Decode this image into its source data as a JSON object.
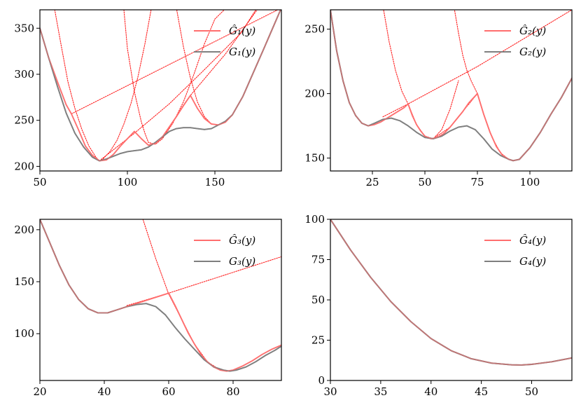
{
  "chart_data": [
    {
      "type": "line",
      "panel": "top-left",
      "xlim": [
        50,
        188
      ],
      "ylim": [
        195,
        370
      ],
      "xticks": [
        50,
        100,
        150
      ],
      "yticks": [
        200,
        250,
        300,
        350
      ],
      "legend": {
        "placement": "top-right",
        "entries": [
          "Ĝ₁(y)",
          "G₁(y)"
        ]
      },
      "series": [
        {
          "name": "Ĝ₁(y)",
          "color": "#ff6e6e",
          "x": [
            50,
            55,
            60,
            65,
            68,
            72,
            76,
            80,
            84,
            88,
            92,
            96,
            100,
            104,
            108,
            112,
            116,
            120,
            124,
            128,
            132,
            136,
            140,
            144,
            148,
            152,
            156,
            160,
            166,
            172,
            178,
            188
          ],
          "y": [
            350,
            318,
            292,
            267,
            257,
            240,
            222,
            212,
            206,
            207,
            213,
            222,
            230,
            238,
            230,
            223,
            225,
            232,
            243,
            254,
            266,
            277,
            263,
            252,
            246,
            245,
            248,
            256,
            276,
            302,
            328,
            372
          ]
        },
        {
          "name": "G₁(y)",
          "color": "#7f7f7f",
          "x": [
            50,
            55,
            60,
            65,
            70,
            75,
            80,
            84,
            88,
            92,
            96,
            100,
            104,
            108,
            112,
            116,
            120,
            124,
            128,
            132,
            136,
            140,
            144,
            148,
            152,
            156,
            160,
            166,
            172,
            178,
            188
          ],
          "y": [
            350,
            318,
            287,
            258,
            236,
            221,
            210,
            206,
            208,
            211,
            214,
            216,
            217,
            218,
            221,
            226,
            232,
            238,
            241,
            242,
            242,
            241,
            240,
            241,
            245,
            249,
            256,
            276,
            302,
            328,
            372
          ]
        },
        {
          "name": "",
          "color": "#ff1e1e",
          "dashed": true,
          "x": [
            68,
            188
          ],
          "y": [
            257,
            372
          ]
        },
        {
          "name": "",
          "color": "#ff1e1e",
          "dashed": true,
          "x": [
            58,
            62,
            66,
            70,
            74,
            78,
            82,
            84,
            86,
            90,
            94,
            98,
            102,
            106,
            110,
            114
          ],
          "y": [
            375,
            333,
            292,
            263,
            240,
            222,
            210,
            206,
            208,
            216,
            228,
            246,
            268,
            297,
            333,
            375
          ]
        },
        {
          "name": "",
          "color": "#ff1e1e",
          "dashed": true,
          "x": [
            84,
            104,
            124,
            144,
            165,
            175
          ],
          "y": [
            206,
            236,
            268,
            305,
            345,
            375
          ]
        },
        {
          "name": "",
          "color": "#ff1e1e",
          "dashed": true,
          "x": [
            98,
            100,
            104,
            108,
            110,
            112,
            116,
            120,
            126,
            132,
            138,
            144,
            150,
            158
          ],
          "y": [
            370,
            328,
            281,
            248,
            236,
            226,
            224,
            230,
            247,
            270,
            300,
            333,
            360,
            375
          ]
        },
        {
          "name": "",
          "color": "#ff1e1e",
          "dashed": true,
          "x": [
            120,
            136,
            156,
            176
          ],
          "y": [
            231,
            277,
            322,
            375
          ]
        },
        {
          "name": "",
          "color": "#ff1e1e",
          "dashed": true,
          "x": [
            128,
            132,
            136,
            140,
            144,
            148,
            152,
            156,
            160,
            166,
            172,
            178,
            188
          ],
          "y": [
            372,
            330,
            296,
            270,
            254,
            246,
            245,
            248,
            256,
            276,
            302,
            328,
            372
          ]
        }
      ]
    },
    {
      "type": "line",
      "panel": "top-right",
      "xlim": [
        5,
        120
      ],
      "ylim": [
        140,
        265
      ],
      "xticks": [
        25,
        50,
        75,
        100
      ],
      "yticks": [
        150,
        200,
        250
      ],
      "legend": {
        "placement": "top-right",
        "entries": [
          "Ĝ₂(y)",
          "G₂(y)"
        ]
      },
      "series": [
        {
          "name": "Ĝ₂(y)",
          "color": "#ff6e6e",
          "x": [
            5,
            8,
            11,
            14,
            17,
            20,
            23,
            26,
            29,
            32,
            36,
            40,
            42,
            44,
            46,
            48,
            50,
            53,
            56,
            59,
            62,
            65,
            68,
            71,
            75,
            78,
            81,
            84,
            87,
            90,
            92,
            95,
            100,
            105,
            110,
            115,
            120
          ],
          "y": [
            265,
            233,
            210,
            193,
            183,
            177,
            175,
            176,
            178,
            181,
            185,
            189,
            192,
            183,
            176,
            171,
            167,
            165,
            166,
            169,
            174,
            180,
            186,
            193,
            200,
            184,
            170,
            159,
            152,
            149,
            148,
            149,
            158,
            170,
            184,
            197,
            212
          ]
        },
        {
          "name": "G₂(y)",
          "color": "#7f7f7f",
          "x": [
            5,
            8,
            11,
            14,
            17,
            20,
            23,
            26,
            30,
            34,
            38,
            42,
            46,
            50,
            54,
            58,
            62,
            66,
            70,
            74,
            78,
            82,
            86,
            90,
            92,
            95,
            100,
            105,
            110,
            115,
            120
          ],
          "y": [
            265,
            233,
            210,
            193,
            183,
            177,
            175,
            177,
            180,
            181,
            179,
            175,
            170,
            166,
            165,
            167,
            171,
            174,
            175,
            172,
            165,
            157,
            152,
            149,
            148,
            149,
            158,
            170,
            184,
            197,
            212
          ]
        },
        {
          "name": "",
          "color": "#ff1e1e",
          "dashed": true,
          "x": [
            30,
            42,
            75,
            120
          ],
          "y": [
            182,
            192,
            221,
            265
          ]
        },
        {
          "name": "",
          "color": "#ff1e1e",
          "dashed": true,
          "x": [
            30,
            33,
            36,
            39,
            42,
            46,
            50,
            54,
            58,
            62,
            66
          ],
          "y": [
            268,
            240,
            218,
            202,
            192,
            176,
            167,
            165,
            172,
            188,
            210
          ]
        },
        {
          "name": "",
          "color": "#ff1e1e",
          "dashed": true,
          "x": [
            54,
            62,
            68,
            75
          ],
          "y": [
            165,
            174,
            186,
            200
          ]
        },
        {
          "name": "",
          "color": "#ff1e1e",
          "dashed": true,
          "x": [
            64,
            66,
            68,
            70,
            72,
            75,
            78,
            82,
            86,
            90,
            92
          ],
          "y": [
            266,
            247,
            230,
            218,
            210,
            200,
            184,
            166,
            154,
            149,
            148
          ]
        }
      ]
    },
    {
      "type": "line",
      "panel": "bottom-left",
      "xlim": [
        20,
        95
      ],
      "ylim": [
        55,
        210
      ],
      "xticks": [
        20,
        40,
        60,
        80
      ],
      "yticks": [
        100,
        150,
        200
      ],
      "legend": {
        "placement": "top-right",
        "entries": [
          "Ĝ₃(y)",
          "G₃(y)"
        ]
      },
      "series": [
        {
          "name": "Ĝ₃(y)",
          "color": "#ff6e6e",
          "x": [
            20,
            23,
            26,
            29,
            32,
            35,
            38,
            41,
            44,
            47,
            50,
            54,
            58,
            60,
            62,
            64,
            66,
            68,
            70,
            72,
            74,
            76,
            78,
            80,
            83,
            86,
            89,
            92,
            95
          ],
          "y": [
            210,
            188,
            166,
            147,
            133,
            124,
            120,
            120,
            123,
            126,
            129,
            133,
            137,
            139,
            127,
            114,
            101,
            90,
            80,
            73,
            68,
            65,
            64,
            65,
            69,
            74,
            80,
            85,
            89
          ]
        },
        {
          "name": "G₃(y)",
          "color": "#7f7f7f",
          "x": [
            20,
            23,
            26,
            29,
            32,
            35,
            38,
            41,
            44,
            47,
            50,
            53,
            56,
            59,
            62,
            65,
            68,
            71,
            74,
            77,
            79,
            81,
            84,
            87,
            90,
            93,
            95
          ],
          "y": [
            210,
            188,
            166,
            147,
            133,
            124,
            120,
            120,
            123,
            126,
            128,
            129,
            126,
            118,
            106,
            95,
            85,
            75,
            68,
            65,
            64,
            65,
            68,
            73,
            79,
            84,
            88
          ]
        },
        {
          "name": "",
          "color": "#ff1e1e",
          "dashed": true,
          "x": [
            47,
            60,
            95
          ],
          "y": [
            127,
            139,
            174
          ]
        },
        {
          "name": "",
          "color": "#ff1e1e",
          "dashed": true,
          "x": [
            52,
            56,
            60,
            64,
            68,
            72,
            76,
            79
          ],
          "y": [
            210,
            172,
            138,
            114,
            90,
            73,
            65,
            64
          ]
        }
      ]
    },
    {
      "type": "line",
      "panel": "bottom-right",
      "xlim": [
        30,
        54
      ],
      "ylim": [
        0,
        100
      ],
      "xticks": [
        30,
        35,
        40,
        45,
        50
      ],
      "yticks": [
        0,
        25,
        50,
        75,
        100
      ],
      "legend": {
        "placement": "top-right",
        "entries": [
          "Ĝ₄(y)",
          "G₄(y)"
        ]
      },
      "series": [
        {
          "name": "Ĝ₄(y)",
          "color": "#ff6e6e",
          "x": [
            30,
            32,
            34,
            36,
            38,
            40,
            42,
            44,
            46,
            48,
            49,
            50,
            52,
            54
          ],
          "y": [
            100,
            81,
            64,
            49,
            36.5,
            26,
            18.5,
            13.5,
            10.8,
            9.7,
            9.6,
            10,
            11.6,
            14
          ]
        },
        {
          "name": "G₄(y)",
          "color": "#7f7f7f",
          "x": [
            30,
            32,
            34,
            36,
            38,
            40,
            42,
            44,
            46,
            48,
            49,
            50,
            52,
            54
          ],
          "y": [
            100,
            81,
            64,
            49,
            36.5,
            26,
            18.5,
            13.5,
            10.8,
            9.7,
            9.6,
            10,
            11.6,
            14
          ]
        }
      ]
    }
  ]
}
